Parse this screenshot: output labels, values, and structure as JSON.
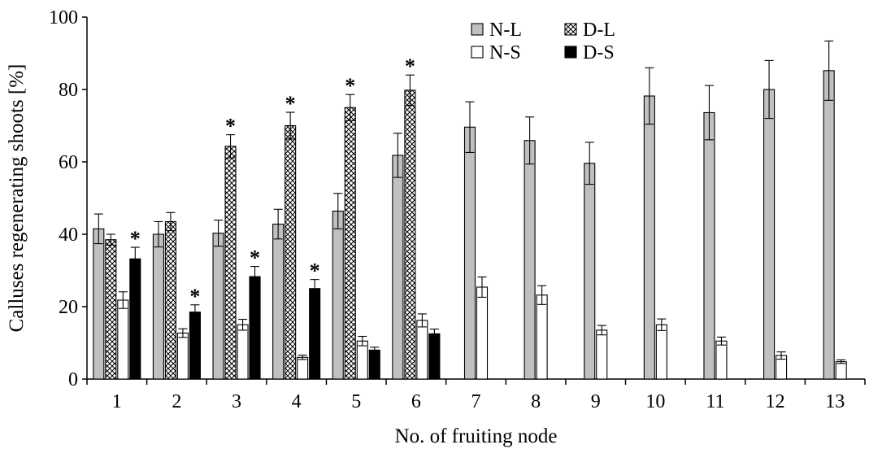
{
  "chart_data": {
    "type": "bar",
    "title": "",
    "xlabel": "No. of fruiting node",
    "ylabel": "Calluses regenerating shoots [%]",
    "ylim": [
      0,
      100
    ],
    "yticks": [
      0,
      20,
      40,
      60,
      80,
      100
    ],
    "grid": false,
    "legend_placement": "top-center",
    "categories": [
      "1",
      "2",
      "3",
      "4",
      "5",
      "6",
      "7",
      "8",
      "9",
      "10",
      "11",
      "12",
      "13"
    ],
    "significance_marker": "*",
    "series": [
      {
        "name": "N-L",
        "fill": "#c0c0c0",
        "pattern": "solid",
        "values": [
          41.5,
          40,
          40.3,
          42.8,
          46.4,
          61.8,
          69.6,
          65.9,
          59.6,
          78.2,
          73.6,
          80,
          85.2
        ],
        "errors": [
          4.1,
          3.5,
          3.6,
          4.1,
          4.9,
          6.1,
          7.0,
          6.5,
          5.8,
          7.8,
          7.5,
          8.0,
          8.2
        ],
        "significant": [
          false,
          false,
          false,
          false,
          false,
          false,
          false,
          false,
          false,
          false,
          false,
          false,
          false
        ]
      },
      {
        "name": "D-L",
        "fill": "#ffffff",
        "pattern": "crosshatch",
        "values": [
          38.5,
          43.5,
          64.3,
          70,
          75,
          79.8,
          null,
          null,
          null,
          null,
          null,
          null,
          null
        ],
        "errors": [
          1.5,
          2.5,
          3.2,
          3.7,
          3.6,
          4.2,
          null,
          null,
          null,
          null,
          null,
          null,
          null
        ],
        "significant": [
          false,
          false,
          true,
          true,
          true,
          true,
          false,
          false,
          false,
          false,
          false,
          false,
          false
        ]
      },
      {
        "name": "N-S",
        "fill": "#ffffff",
        "pattern": "solid",
        "values": [
          21.8,
          12.7,
          15,
          6,
          10.5,
          16.2,
          25.4,
          23.2,
          13.5,
          15,
          10.5,
          6.5,
          4.8
        ],
        "errors": [
          2.3,
          1.2,
          1.5,
          0.6,
          1.3,
          1.8,
          2.8,
          2.6,
          1.3,
          1.6,
          1.1,
          1.0,
          0.5
        ],
        "significant": [
          false,
          false,
          false,
          false,
          false,
          false,
          false,
          false,
          false,
          false,
          false,
          false,
          false
        ]
      },
      {
        "name": "D-S",
        "fill": "#000000",
        "pattern": "solid",
        "values": [
          33.2,
          18.5,
          28.3,
          25,
          8,
          12.5,
          null,
          null,
          null,
          null,
          null,
          null,
          null
        ],
        "errors": [
          3.2,
          2.0,
          2.8,
          2.5,
          0.8,
          1.3,
          null,
          null,
          null,
          null,
          null,
          null,
          null
        ],
        "significant": [
          true,
          true,
          true,
          true,
          false,
          false,
          false,
          false,
          false,
          false,
          false,
          false,
          false
        ]
      }
    ]
  }
}
